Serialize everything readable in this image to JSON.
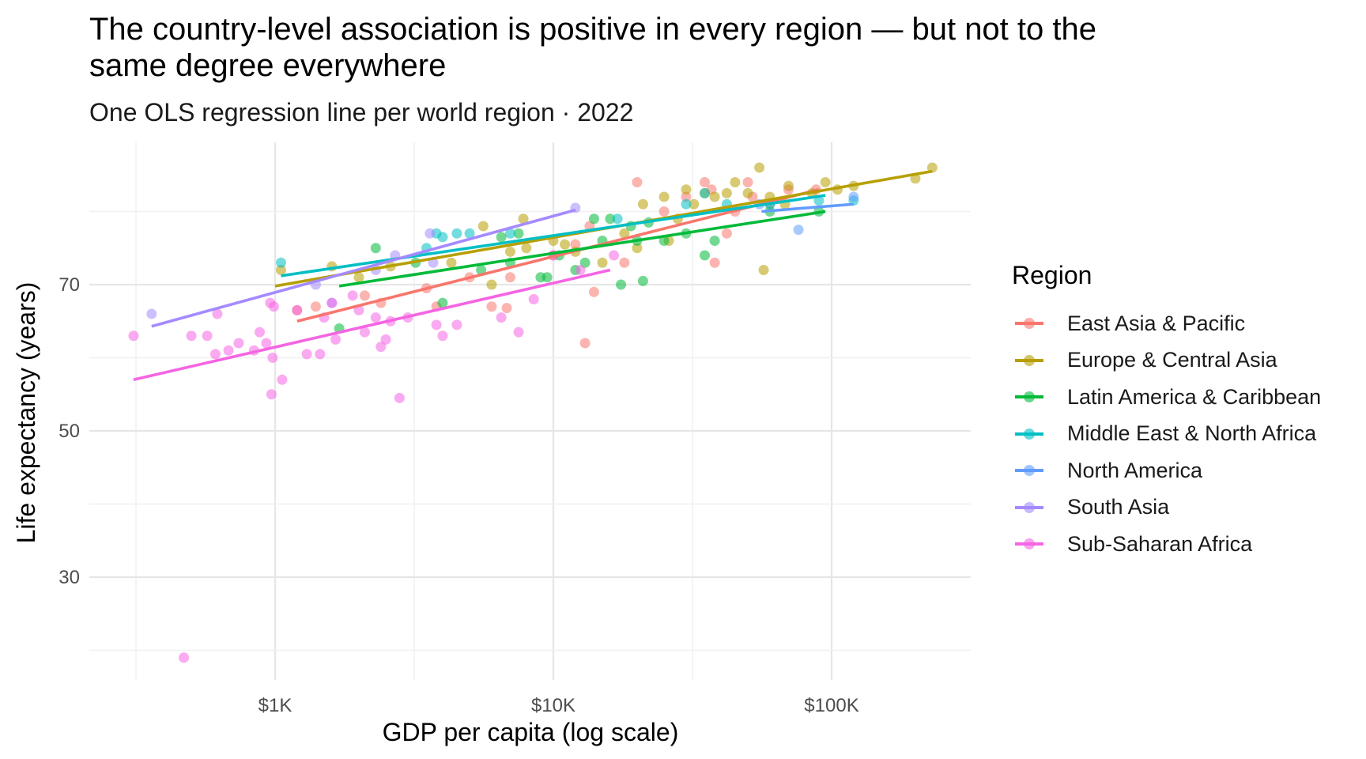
{
  "chart_data": {
    "type": "scatter",
    "title": "The country-level association is positive in every region — but not to the same degree everywhere",
    "subtitle": "One OLS regression line per world region · 2022",
    "xlabel": "GDP per capita (log scale)",
    "ylabel": "Life expectancy (years)",
    "x_scale": "log10",
    "xlim": [
      270,
      300000
    ],
    "ylim": [
      16,
      88
    ],
    "x_ticks": [
      1000,
      10000,
      100000
    ],
    "x_tick_labels": [
      "$1K",
      "$10K",
      "$100K"
    ],
    "y_ticks": [
      30,
      50,
      70
    ],
    "y_tick_labels": [
      "30",
      "50",
      "70"
    ],
    "grid": true,
    "legend_title": "Region",
    "legend_position": "right",
    "series": [
      {
        "name": "East Asia & Pacific",
        "color": "#F8766D",
        "fit": {
          "x": [
            1200,
            90000
          ],
          "y": [
            65.0,
            83.0
          ]
        },
        "points": [
          [
            1200,
            66.5
          ],
          [
            1400,
            67
          ],
          [
            2100,
            68.5
          ],
          [
            2400,
            67.5
          ],
          [
            3500,
            69.5
          ],
          [
            3800,
            67
          ],
          [
            5000,
            71
          ],
          [
            6000,
            67
          ],
          [
            6800,
            66.8
          ],
          [
            7000,
            71
          ],
          [
            10000,
            74
          ],
          [
            12000,
            75.5
          ],
          [
            13000,
            62
          ],
          [
            13500,
            78
          ],
          [
            14000,
            69
          ],
          [
            18000,
            73
          ],
          [
            20000,
            84
          ],
          [
            25000,
            80
          ],
          [
            30000,
            82
          ],
          [
            35000,
            84
          ],
          [
            37000,
            83
          ],
          [
            38000,
            73
          ],
          [
            42000,
            77
          ],
          [
            45000,
            80
          ],
          [
            50000,
            84
          ],
          [
            52000,
            82
          ],
          [
            60000,
            81
          ],
          [
            70000,
            83
          ],
          [
            88000,
            83
          ]
        ]
      },
      {
        "name": "Europe & Central Asia",
        "color": "#B79F00",
        "fit": {
          "x": [
            1000,
            230000
          ],
          "y": [
            69.8,
            85.5
          ]
        },
        "points": [
          [
            1050,
            72
          ],
          [
            1600,
            72.5
          ],
          [
            2000,
            71
          ],
          [
            2600,
            72.5
          ],
          [
            4300,
            73
          ],
          [
            5600,
            78
          ],
          [
            6000,
            70
          ],
          [
            7000,
            74.5
          ],
          [
            7800,
            79
          ],
          [
            8000,
            75
          ],
          [
            10000,
            76
          ],
          [
            11000,
            75.5
          ],
          [
            12000,
            74.5
          ],
          [
            15000,
            73
          ],
          [
            18000,
            77
          ],
          [
            20000,
            75
          ],
          [
            21000,
            81
          ],
          [
            25000,
            82
          ],
          [
            26000,
            76
          ],
          [
            28000,
            79
          ],
          [
            30000,
            83
          ],
          [
            32000,
            81
          ],
          [
            35000,
            82.5
          ],
          [
            38000,
            82
          ],
          [
            42000,
            82.5
          ],
          [
            45000,
            84
          ],
          [
            50000,
            82.5
          ],
          [
            55000,
            86
          ],
          [
            57000,
            72
          ],
          [
            60000,
            82
          ],
          [
            68000,
            81
          ],
          [
            70000,
            83.5
          ],
          [
            85000,
            82.5
          ],
          [
            95000,
            84
          ],
          [
            105000,
            83
          ],
          [
            120000,
            83.5
          ],
          [
            200000,
            84.5
          ],
          [
            230000,
            86
          ]
        ]
      },
      {
        "name": "Latin America & Caribbean",
        "color": "#00BA38",
        "fit": {
          "x": [
            1700,
            95000
          ],
          "y": [
            69.8,
            80.0
          ]
        },
        "points": [
          [
            1700,
            64
          ],
          [
            2300,
            75
          ],
          [
            3200,
            73
          ],
          [
            4000,
            67.5
          ],
          [
            5500,
            72
          ],
          [
            6500,
            76.5
          ],
          [
            7000,
            73
          ],
          [
            7500,
            77
          ],
          [
            9000,
            71
          ],
          [
            9500,
            71
          ],
          [
            10500,
            74
          ],
          [
            12000,
            72
          ],
          [
            13000,
            73
          ],
          [
            14000,
            79
          ],
          [
            15000,
            76
          ],
          [
            16000,
            79
          ],
          [
            17500,
            70
          ],
          [
            19000,
            78
          ],
          [
            20000,
            76
          ],
          [
            21000,
            70.5
          ],
          [
            22000,
            78.5
          ],
          [
            25000,
            76
          ],
          [
            30000,
            77
          ],
          [
            35000,
            74
          ],
          [
            38000,
            76
          ],
          [
            60000,
            80
          ],
          [
            90000,
            80
          ]
        ]
      },
      {
        "name": "Middle East & North Africa",
        "color": "#00BFC4",
        "fit": {
          "x": [
            1050,
            95000
          ],
          "y": [
            71.2,
            82.2
          ]
        },
        "points": [
          [
            1050,
            73
          ],
          [
            3500,
            75
          ],
          [
            3800,
            77
          ],
          [
            4000,
            76.5
          ],
          [
            4500,
            77
          ],
          [
            5000,
            77
          ],
          [
            7000,
            77
          ],
          [
            17000,
            79
          ],
          [
            30000,
            81
          ],
          [
            35000,
            82.5
          ],
          [
            42000,
            81
          ],
          [
            60000,
            81
          ],
          [
            90000,
            81.5
          ],
          [
            120000,
            81.5
          ]
        ]
      },
      {
        "name": "North America",
        "color": "#619CFF",
        "fit": {
          "x": [
            56000,
            120000
          ],
          "y": [
            80.0,
            81.0
          ]
        },
        "points": [
          [
            55000,
            81
          ],
          [
            76000,
            77.5
          ],
          [
            120000,
            82
          ]
        ]
      },
      {
        "name": "South Asia",
        "color": "#A58AFF",
        "fit": {
          "x": [
            360,
            12000
          ],
          "y": [
            64.3,
            80.2
          ]
        },
        "points": [
          [
            360,
            66
          ],
          [
            1400,
            70
          ],
          [
            1600,
            67.5
          ],
          [
            2300,
            72
          ],
          [
            2700,
            74
          ],
          [
            3600,
            77
          ],
          [
            3700,
            73
          ],
          [
            12000,
            80.5
          ]
        ]
      },
      {
        "name": "Sub-Saharan Africa",
        "color": "#F564E3",
        "fit": {
          "x": [
            310,
            16000
          ],
          "y": [
            57.0,
            72.0
          ]
        },
        "points": [
          [
            310,
            63
          ],
          [
            470,
            19
          ],
          [
            500,
            63
          ],
          [
            570,
            63
          ],
          [
            610,
            60.5
          ],
          [
            620,
            66
          ],
          [
            680,
            61
          ],
          [
            740,
            62
          ],
          [
            840,
            61
          ],
          [
            880,
            63.5
          ],
          [
            930,
            62
          ],
          [
            960,
            67.5
          ],
          [
            970,
            55
          ],
          [
            980,
            60
          ],
          [
            990,
            67
          ],
          [
            1060,
            57
          ],
          [
            1200,
            66.5
          ],
          [
            1300,
            60.5
          ],
          [
            1450,
            60.5
          ],
          [
            1500,
            65.5
          ],
          [
            1600,
            67.5
          ],
          [
            1650,
            62.5
          ],
          [
            1900,
            68.5
          ],
          [
            2000,
            66.5
          ],
          [
            2100,
            63.5
          ],
          [
            2300,
            65.5
          ],
          [
            2400,
            61.5
          ],
          [
            2500,
            62.5
          ],
          [
            2600,
            65
          ],
          [
            2800,
            54.5
          ],
          [
            3000,
            65.5
          ],
          [
            3800,
            64.5
          ],
          [
            4000,
            63
          ],
          [
            4500,
            64.5
          ],
          [
            6500,
            65.5
          ],
          [
            7500,
            63.5
          ],
          [
            8500,
            68
          ],
          [
            10000,
            74
          ],
          [
            12500,
            72
          ],
          [
            16500,
            74
          ]
        ]
      }
    ]
  }
}
